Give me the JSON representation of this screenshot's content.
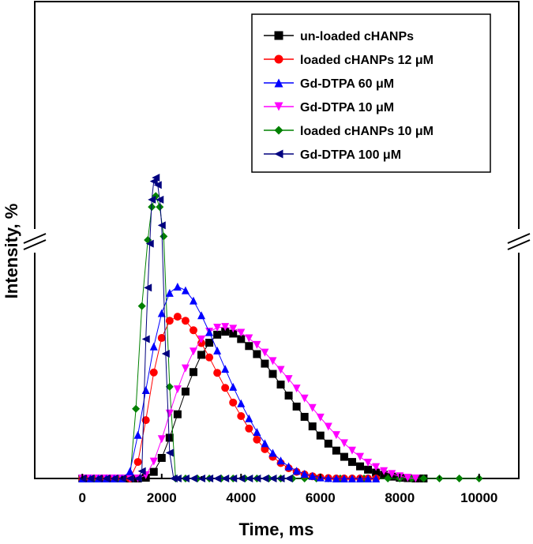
{
  "chart_data": {
    "type": "line",
    "title": "",
    "xlabel": "Time, ms",
    "ylabel": "Intensity, %",
    "xlim": [
      -1200,
      11000
    ],
    "ylim": [
      0,
      130
    ],
    "x_ticks": [
      0,
      2000,
      4000,
      6000,
      8000,
      10000
    ],
    "x_tick_labels": [
      "0",
      "2000",
      "4000",
      "6000",
      "8000",
      "10000"
    ],
    "y_ticks_shown": false,
    "y_axis_break": true,
    "grid": false,
    "legend_position": "top-right",
    "series": [
      {
        "name": "un-loaded cHANPs",
        "marker": "square",
        "color": "#000000",
        "x": [
          0,
          200,
          400,
          600,
          800,
          1000,
          1200,
          1400,
          1600,
          1800,
          2000,
          2200,
          2400,
          2600,
          2800,
          3000,
          3200,
          3400,
          3600,
          3800,
          4000,
          4200,
          4400,
          4600,
          4800,
          5000,
          5200,
          5400,
          5600,
          5800,
          6000,
          6200,
          6400,
          6600,
          6800,
          7000,
          7200,
          7400,
          7600,
          7800,
          8000,
          8200,
          8400,
          8600
        ],
        "y": [
          0,
          0,
          0,
          0,
          0,
          0,
          0,
          0,
          0.2,
          1.8,
          5.6,
          11.1,
          17.5,
          23.7,
          29,
          33.7,
          37,
          39.2,
          40,
          39.5,
          38,
          36.1,
          33.9,
          31.3,
          28.5,
          25.6,
          22.6,
          19.6,
          16.8,
          14.2,
          11.7,
          9.5,
          7.6,
          5.9,
          4.5,
          3.3,
          2.4,
          1.6,
          1,
          0.5,
          0.2,
          0.1,
          0,
          0
        ]
      },
      {
        "name": "loaded cHANPs 12 μM",
        "marker": "circle",
        "color": "#ff0000",
        "x": [
          0,
          200,
          400,
          600,
          800,
          1000,
          1200,
          1400,
          1600,
          1800,
          2000,
          2200,
          2400,
          2600,
          2800,
          3000,
          3200,
          3400,
          3600,
          3800,
          4000,
          4200,
          4400,
          4600,
          4800,
          5000,
          5200,
          5400,
          5600,
          5800,
          6000,
          6200,
          6400,
          6600,
          6800,
          7000,
          7200,
          7400
        ],
        "y": [
          0,
          0,
          0,
          0,
          0,
          0,
          0,
          4.5,
          15.9,
          28.9,
          38.3,
          43,
          44.1,
          43,
          40.4,
          36.9,
          33,
          28.8,
          24.7,
          20.7,
          17,
          13.6,
          10.6,
          8,
          5.9,
          4.2,
          2.8,
          1.8,
          1.1,
          0.6,
          0.3,
          0.1,
          0,
          0,
          0,
          0,
          0,
          0
        ]
      },
      {
        "name": "Gd-DTPA 60 μM",
        "marker": "triangle-up",
        "color": "#0000ff",
        "x": [
          0,
          200,
          400,
          600,
          800,
          1000,
          1200,
          1400,
          1600,
          1800,
          2000,
          2200,
          2400,
          2600,
          2800,
          3000,
          3200,
          3400,
          3600,
          3800,
          4000,
          4200,
          4400,
          4600,
          4800,
          5000,
          5200,
          5400,
          5600,
          5800,
          6000,
          6200,
          6400,
          6600,
          6800,
          7000,
          7200,
          7400
        ],
        "y": [
          0,
          0,
          0,
          0,
          0,
          0,
          2,
          11.9,
          24.1,
          36,
          45.1,
          50.6,
          52.3,
          51.3,
          48.5,
          44.5,
          39.9,
          34.9,
          29.9,
          25,
          20.5,
          16.4,
          12.7,
          9.6,
          7,
          4.9,
          3.3,
          2.1,
          1.3,
          0.7,
          0.3,
          0.1,
          0,
          0,
          0,
          0,
          0,
          0
        ]
      },
      {
        "name": "Gd-DTPA 10 μM",
        "marker": "triangle-down",
        "color": "#ff00ff",
        "x": [
          0,
          200,
          400,
          600,
          800,
          1000,
          1200,
          1400,
          1600,
          1800,
          2000,
          2200,
          2400,
          2600,
          2800,
          3000,
          3200,
          3400,
          3600,
          3800,
          4000,
          4200,
          4400,
          4600,
          4800,
          5000,
          5200,
          5400,
          5600,
          5800,
          6000,
          6200,
          6400,
          6600,
          6800,
          7000,
          7200,
          7400,
          7600,
          7800,
          8000,
          8200,
          8400
        ],
        "y": [
          0,
          0,
          0,
          0,
          0,
          0,
          0,
          0,
          0.9,
          4.6,
          10.7,
          17.7,
          24.3,
          30,
          34.6,
          37.9,
          40,
          41.1,
          41.3,
          40.8,
          39.7,
          38.2,
          36.4,
          34.3,
          32,
          29.6,
          27.1,
          24.5,
          21.8,
          19.2,
          16.6,
          14.1,
          11.8,
          9.6,
          7.6,
          5.9,
          4.3,
          3.1,
          2,
          1.2,
          0.6,
          0.2,
          0
        ]
      },
      {
        "name": "loaded cHANPs 10 μM",
        "marker": "diamond",
        "color": "#008000",
        "x": [
          0,
          300,
          600,
          900,
          1200,
          1350,
          1500,
          1650,
          1750,
          1850,
          1950,
          2050,
          2200,
          2350,
          2600,
          2900,
          3200,
          3500,
          3800,
          4100,
          4400,
          4700,
          5000,
          5300,
          5600,
          5900,
          6200,
          6500,
          6800,
          7100,
          7400,
          7700,
          8000,
          8300,
          8600,
          9000,
          9500,
          10000
        ],
        "y": [
          0,
          0,
          0,
          0,
          0,
          19,
          47,
          65,
          74,
          77,
          74,
          66,
          25,
          0,
          0,
          0,
          0,
          0,
          0,
          0,
          0,
          0,
          0,
          0,
          0,
          0,
          0,
          0,
          0,
          0,
          0,
          0,
          0,
          0,
          0,
          0,
          0,
          0
        ]
      },
      {
        "name": "Gd-DTPA 100 μM",
        "marker": "triangle-left",
        "color": "#00007f",
        "x": [
          0,
          200,
          400,
          600,
          800,
          1000,
          1200,
          1400,
          1500,
          1600,
          1650,
          1700,
          1750,
          1800,
          1850,
          1900,
          1950,
          2000,
          2100,
          2200,
          2300,
          2400,
          2600,
          2800,
          3000,
          3200,
          3400,
          3600,
          3800,
          4000,
          4200,
          4400,
          4600,
          4800,
          5000,
          5200
        ],
        "y": [
          0,
          0,
          0,
          0,
          0,
          0,
          0,
          0,
          2,
          38,
          52,
          64,
          76,
          81,
          82,
          80,
          76,
          69,
          34,
          7,
          0,
          0,
          0,
          0,
          0,
          0,
          0,
          0,
          0,
          0,
          0,
          0,
          0,
          0,
          0,
          0
        ]
      }
    ]
  }
}
